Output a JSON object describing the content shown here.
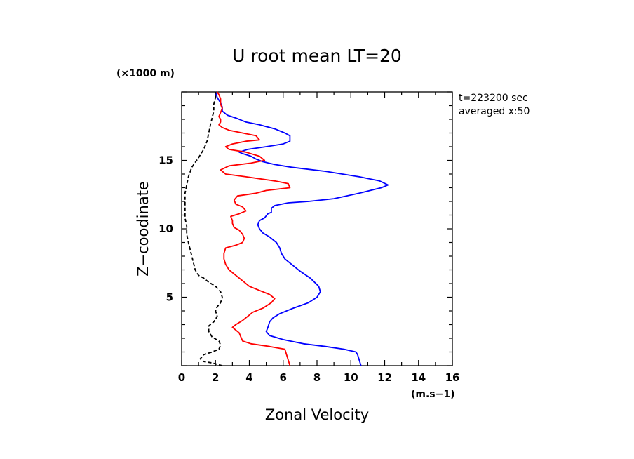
{
  "chart_data": {
    "type": "line",
    "title": "U root mean LT=20",
    "xlabel": "Zonal Velocity",
    "ylabel": "Z−coodinate",
    "x_unit": "(m.s−1)",
    "y_unit": "(×1000 m)",
    "xlim": [
      0,
      16
    ],
    "ylim": [
      0,
      20
    ],
    "x_ticks": [
      "0",
      "2",
      "4",
      "6",
      "8",
      "10",
      "12",
      "14",
      "16"
    ],
    "y_ticks": [
      "5",
      "10",
      "15"
    ],
    "annotation": [
      "t=223200 sec",
      "averaged   x:50"
    ],
    "grid": false,
    "series": [
      {
        "color": "#0000ff",
        "dash": "solid",
        "points": [
          [
            10.6,
            0.0
          ],
          [
            10.5,
            0.4
          ],
          [
            10.4,
            0.8
          ],
          [
            10.3,
            1.0
          ],
          [
            9.6,
            1.2
          ],
          [
            8.5,
            1.4
          ],
          [
            7.2,
            1.6
          ],
          [
            6.0,
            1.9
          ],
          [
            5.2,
            2.2
          ],
          [
            5.0,
            2.5
          ],
          [
            5.1,
            2.8
          ],
          [
            5.2,
            3.2
          ],
          [
            5.4,
            3.5
          ],
          [
            5.8,
            3.8
          ],
          [
            6.6,
            4.2
          ],
          [
            7.5,
            4.6
          ],
          [
            8.0,
            5.0
          ],
          [
            8.2,
            5.4
          ],
          [
            8.1,
            5.8
          ],
          [
            7.6,
            6.4
          ],
          [
            7.0,
            6.9
          ],
          [
            6.5,
            7.4
          ],
          [
            6.1,
            7.8
          ],
          [
            5.9,
            8.2
          ],
          [
            5.8,
            8.6
          ],
          [
            5.6,
            9.0
          ],
          [
            5.2,
            9.4
          ],
          [
            4.8,
            9.7
          ],
          [
            4.6,
            10.0
          ],
          [
            4.5,
            10.3
          ],
          [
            4.6,
            10.6
          ],
          [
            4.9,
            10.8
          ],
          [
            5.1,
            11.1
          ],
          [
            5.3,
            11.2
          ],
          [
            5.3,
            11.5
          ],
          [
            5.5,
            11.7
          ],
          [
            6.3,
            11.9
          ],
          [
            7.5,
            12.0
          ],
          [
            9.0,
            12.2
          ],
          [
            10.5,
            12.6
          ],
          [
            11.8,
            13.0
          ],
          [
            12.2,
            13.2
          ],
          [
            11.7,
            13.5
          ],
          [
            10.5,
            13.8
          ],
          [
            8.5,
            14.2
          ],
          [
            6.5,
            14.5
          ],
          [
            5.5,
            14.7
          ],
          [
            4.8,
            14.9
          ],
          [
            4.4,
            15.1
          ],
          [
            4.1,
            15.3
          ],
          [
            3.6,
            15.5
          ],
          [
            3.4,
            15.6
          ],
          [
            3.9,
            15.8
          ],
          [
            5.0,
            16.0
          ],
          [
            6.0,
            16.2
          ],
          [
            6.4,
            16.4
          ],
          [
            6.4,
            16.8
          ],
          [
            6.1,
            17.0
          ],
          [
            5.5,
            17.3
          ],
          [
            4.6,
            17.6
          ],
          [
            3.8,
            17.8
          ],
          [
            3.2,
            18.1
          ],
          [
            2.7,
            18.3
          ],
          [
            2.4,
            18.6
          ],
          [
            2.4,
            18.9
          ],
          [
            2.3,
            19.2
          ],
          [
            2.1,
            19.6
          ],
          [
            2.0,
            20.0
          ]
        ]
      },
      {
        "color": "#ff0000",
        "dash": "solid",
        "points": [
          [
            6.4,
            0.0
          ],
          [
            6.3,
            0.4
          ],
          [
            6.2,
            0.8
          ],
          [
            6.1,
            1.2
          ],
          [
            5.2,
            1.4
          ],
          [
            4.1,
            1.6
          ],
          [
            3.6,
            1.8
          ],
          [
            3.5,
            2.1
          ],
          [
            3.4,
            2.4
          ],
          [
            3.2,
            2.6
          ],
          [
            3.0,
            2.8
          ],
          [
            3.2,
            3.0
          ],
          [
            3.6,
            3.3
          ],
          [
            3.9,
            3.6
          ],
          [
            4.2,
            3.9
          ],
          [
            4.8,
            4.2
          ],
          [
            5.3,
            4.6
          ],
          [
            5.5,
            4.9
          ],
          [
            5.2,
            5.2
          ],
          [
            4.6,
            5.5
          ],
          [
            4.0,
            5.8
          ],
          [
            3.6,
            6.2
          ],
          [
            3.2,
            6.6
          ],
          [
            2.8,
            7.0
          ],
          [
            2.6,
            7.4
          ],
          [
            2.5,
            7.8
          ],
          [
            2.5,
            8.2
          ],
          [
            2.6,
            8.6
          ],
          [
            3.2,
            8.8
          ],
          [
            3.6,
            9.0
          ],
          [
            3.7,
            9.3
          ],
          [
            3.6,
            9.6
          ],
          [
            3.4,
            9.9
          ],
          [
            3.1,
            10.1
          ],
          [
            3.0,
            10.4
          ],
          [
            3.0,
            10.6
          ],
          [
            2.9,
            10.9
          ],
          [
            3.4,
            11.1
          ],
          [
            3.8,
            11.3
          ],
          [
            3.6,
            11.6
          ],
          [
            3.2,
            11.8
          ],
          [
            3.1,
            12.1
          ],
          [
            3.3,
            12.4
          ],
          [
            4.4,
            12.6
          ],
          [
            5.0,
            12.8
          ],
          [
            6.4,
            13.0
          ],
          [
            6.3,
            13.3
          ],
          [
            5.5,
            13.5
          ],
          [
            3.8,
            13.8
          ],
          [
            2.6,
            14.0
          ],
          [
            2.3,
            14.3
          ],
          [
            2.8,
            14.6
          ],
          [
            4.1,
            14.8
          ],
          [
            4.9,
            15.0
          ],
          [
            4.6,
            15.3
          ],
          [
            3.8,
            15.6
          ],
          [
            2.8,
            15.8
          ],
          [
            2.6,
            16.0
          ],
          [
            3.0,
            16.2
          ],
          [
            3.8,
            16.4
          ],
          [
            4.6,
            16.5
          ],
          [
            4.4,
            16.8
          ],
          [
            3.6,
            17.0
          ],
          [
            2.8,
            17.2
          ],
          [
            2.4,
            17.4
          ],
          [
            2.2,
            17.6
          ],
          [
            2.3,
            17.8
          ],
          [
            2.3,
            18.0
          ],
          [
            2.2,
            18.2
          ],
          [
            2.3,
            18.5
          ],
          [
            2.4,
            18.8
          ],
          [
            2.3,
            19.1
          ],
          [
            2.3,
            19.5
          ],
          [
            2.2,
            19.8
          ],
          [
            2.1,
            20.0
          ]
        ]
      },
      {
        "color": "#000000",
        "dash": "dashed",
        "points": [
          [
            2.4,
            0.0
          ],
          [
            1.8,
            0.2
          ],
          [
            1.3,
            0.3
          ],
          [
            1.1,
            0.5
          ],
          [
            1.3,
            0.8
          ],
          [
            1.8,
            1.0
          ],
          [
            2.2,
            1.2
          ],
          [
            2.3,
            1.5
          ],
          [
            2.2,
            1.8
          ],
          [
            1.8,
            2.1
          ],
          [
            1.6,
            2.5
          ],
          [
            1.6,
            2.9
          ],
          [
            1.9,
            3.2
          ],
          [
            2.1,
            3.6
          ],
          [
            2.0,
            4.0
          ],
          [
            2.1,
            4.3
          ],
          [
            2.3,
            4.6
          ],
          [
            2.4,
            5.0
          ],
          [
            2.3,
            5.4
          ],
          [
            2.0,
            5.8
          ],
          [
            1.6,
            6.1
          ],
          [
            1.3,
            6.4
          ],
          [
            1.0,
            6.6
          ],
          [
            0.8,
            7.0
          ],
          [
            0.7,
            7.5
          ],
          [
            0.6,
            8.0
          ],
          [
            0.5,
            8.5
          ],
          [
            0.4,
            9.0
          ],
          [
            0.3,
            9.6
          ],
          [
            0.3,
            10.2
          ],
          [
            0.2,
            10.8
          ],
          [
            0.2,
            11.4
          ],
          [
            0.2,
            12.0
          ],
          [
            0.2,
            12.6
          ],
          [
            0.3,
            13.2
          ],
          [
            0.4,
            13.8
          ],
          [
            0.6,
            14.5
          ],
          [
            1.0,
            15.2
          ],
          [
            1.3,
            15.8
          ],
          [
            1.5,
            16.4
          ],
          [
            1.6,
            17.0
          ],
          [
            1.7,
            17.6
          ],
          [
            1.8,
            18.1
          ],
          [
            1.9,
            18.6
          ],
          [
            1.9,
            19.1
          ],
          [
            2.0,
            19.6
          ],
          [
            2.0,
            20.0
          ]
        ]
      }
    ]
  }
}
